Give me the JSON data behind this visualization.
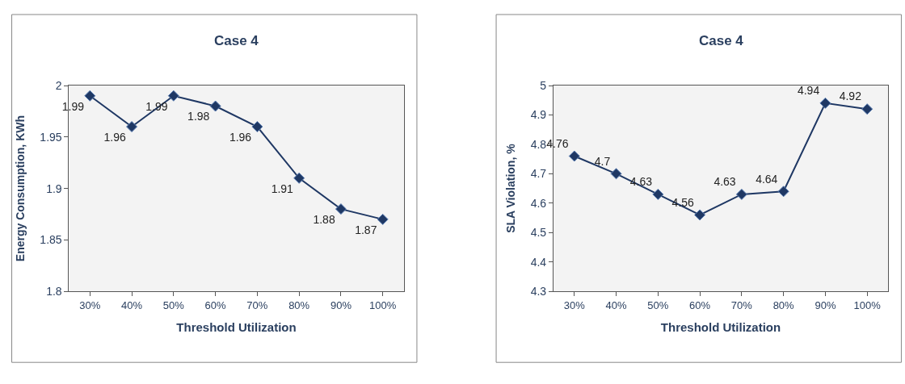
{
  "chart_data": [
    {
      "type": "line",
      "title": "Case 4",
      "xlabel": "Threshold Utilization",
      "ylabel": "Energy Consumption, KWh",
      "categories": [
        "30%",
        "40%",
        "50%",
        "60%",
        "70%",
        "80%",
        "90%",
        "100%"
      ],
      "series": [
        {
          "color": "#1f3864",
          "values": [
            1.99,
            1.96,
            1.99,
            1.98,
            1.96,
            1.91,
            1.88,
            1.87
          ]
        }
      ],
      "ylim": [
        1.8,
        2
      ],
      "yticks": [
        1.8,
        1.85,
        1.9,
        1.95,
        2
      ],
      "marker": "diamond",
      "line_style": "solid",
      "data_labels": true
    },
    {
      "type": "line",
      "title": "Case 4",
      "xlabel": "Threshold Utilization",
      "ylabel": "SLA Violation, %",
      "categories": [
        "30%",
        "40%",
        "50%",
        "60%",
        "70%",
        "80%",
        "90%",
        "100%"
      ],
      "series": [
        {
          "color": "#1f3864",
          "values": [
            4.76,
            4.7,
            4.63,
            4.56,
            4.63,
            4.64,
            4.94,
            4.92
          ]
        }
      ],
      "ylim": [
        4.3,
        5
      ],
      "yticks": [
        4.3,
        4.4,
        4.5,
        4.6,
        4.7,
        4.8,
        4.9,
        5
      ],
      "marker": "diamond",
      "line_style": "solid",
      "data_labels": true
    }
  ]
}
